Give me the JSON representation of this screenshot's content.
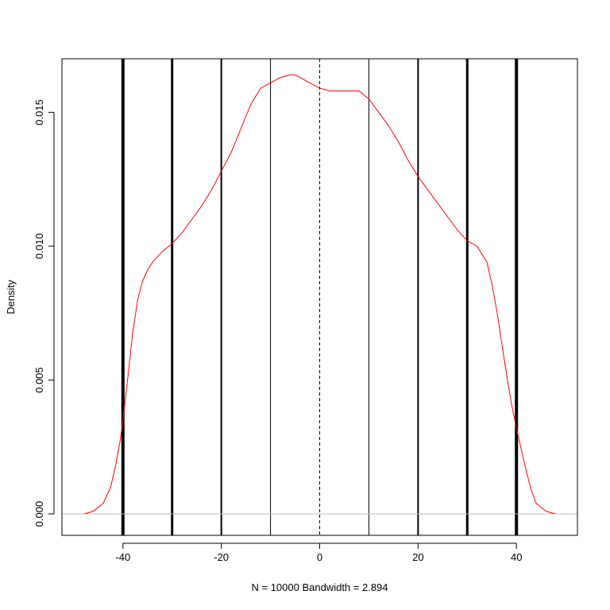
{
  "chart_data": {
    "type": "line",
    "title": "",
    "xlabel": "N = 10000   Bandwidth = 2.894",
    "ylabel": "Density",
    "xlim": [
      -52.4,
      52.4
    ],
    "ylim": [
      -0.0008,
      0.017
    ],
    "x_ticks": [
      -40,
      -20,
      0,
      20,
      40
    ],
    "x_tick_labels": [
      "-40",
      "-20",
      "0",
      "20",
      "40"
    ],
    "y_ticks": [
      0.0,
      0.005,
      0.01,
      0.015
    ],
    "y_tick_labels": [
      "0.000",
      "0.005",
      "0.010",
      "0.015"
    ],
    "grid": false,
    "legend": "none",
    "baseline": {
      "y": 0,
      "color": "#bebebe"
    },
    "reference_lines": [
      {
        "x": -40,
        "width": 4,
        "style": "solid"
      },
      {
        "x": -30,
        "width": 3,
        "style": "solid"
      },
      {
        "x": -20,
        "width": 2,
        "style": "solid"
      },
      {
        "x": -10,
        "width": 1,
        "style": "solid"
      },
      {
        "x": 0,
        "width": 1,
        "style": "dashed"
      },
      {
        "x": 10,
        "width": 1,
        "style": "solid"
      },
      {
        "x": 20,
        "width": 2,
        "style": "solid"
      },
      {
        "x": 30,
        "width": 3,
        "style": "solid"
      },
      {
        "x": 40,
        "width": 4,
        "style": "solid"
      }
    ],
    "series": [
      {
        "color": "#ff0000",
        "x": [
          -47.8,
          -46,
          -44,
          -42.5,
          -41.5,
          -40.5,
          -40,
          -39,
          -38,
          -37,
          -36,
          -35,
          -34,
          -32,
          -30,
          -28,
          -26,
          -24,
          -22,
          -20,
          -18,
          -16,
          -14,
          -12,
          -10,
          -8,
          -6,
          -5,
          -4,
          -2,
          0,
          2,
          4,
          6,
          8,
          10,
          12,
          14,
          16,
          18,
          20,
          22,
          24,
          26,
          28,
          30,
          32,
          34,
          35,
          36,
          37,
          38,
          39,
          40,
          41,
          42,
          43,
          44,
          46,
          47.8
        ],
        "y": [
          0.0,
          0.0001,
          0.0004,
          0.001,
          0.0018,
          0.0028,
          0.0035,
          0.0051,
          0.0068,
          0.008,
          0.0087,
          0.0091,
          0.0094,
          0.0098,
          0.0101,
          0.0105,
          0.011,
          0.0115,
          0.0121,
          0.0128,
          0.0135,
          0.0144,
          0.0153,
          0.0159,
          0.0161,
          0.0163,
          0.0164,
          0.0164,
          0.0163,
          0.0161,
          0.0159,
          0.0158,
          0.0158,
          0.0158,
          0.0158,
          0.0155,
          0.015,
          0.0145,
          0.0139,
          0.0132,
          0.0126,
          0.0121,
          0.0116,
          0.0111,
          0.0106,
          0.0102,
          0.01,
          0.0094,
          0.0086,
          0.0076,
          0.0064,
          0.0052,
          0.0041,
          0.0032,
          0.0024,
          0.0016,
          0.0009,
          0.0004,
          0.0001,
          0.0
        ]
      }
    ]
  }
}
